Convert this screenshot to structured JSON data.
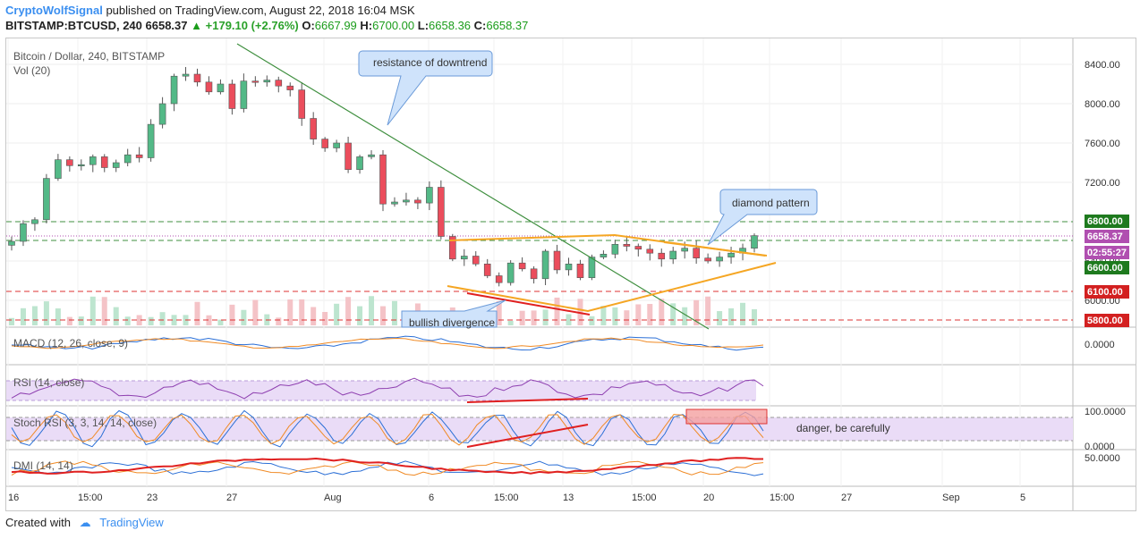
{
  "header": {
    "author": "CryptoWolfSignal",
    "published": "published on TradingView.com, August 22, 2018 16:04 MSK",
    "symbol": "BITSTAMP:BTCUSD, 240",
    "last": "6658.37",
    "change": "+179.10 (+2.76%)",
    "o_label": "O:",
    "o": "6667.99",
    "h_label": "H:",
    "h": "6700.00",
    "l_label": "L:",
    "l": "6658.36",
    "c_label": "C:",
    "c": "6658.37"
  },
  "panes": {
    "main_title": "Bitcoin / Dollar, 240, BITSTAMP",
    "vol_label": "Vol (20)",
    "macd_label": "MACD (12, 26, close, 9)",
    "macd_axis": "0.0000",
    "rsi_label": "RSI (14, close)",
    "stoch_label": "Stoch RSI (3, 3, 14, 14, close)",
    "stoch_axis_top": "100.0000",
    "stoch_axis_bottom": "0.0000",
    "dmi_label": "DMI (14, 14)",
    "dmi_axis": "50.0000"
  },
  "annotations": {
    "resistance": "resistance of downtrend",
    "diamond": "diamond pattern",
    "bullish": "bullish divergence",
    "danger": "danger, be carefully"
  },
  "price_tags": {
    "t6800": "6800.00",
    "t6658": "6658.37",
    "timer": "02:55:27",
    "t6600": "6600.00",
    "t6100": "6100.00",
    "t5800": "5800.00"
  },
  "footer": {
    "created": "Created with",
    "brand": "TradingView"
  },
  "colors": {
    "up": "#53b987",
    "down": "#eb4d5c",
    "trend_green": "#3f8f3f",
    "pattern_orange": "#f5a623",
    "divergence_red": "#e02020",
    "callout_fill": "#cfe3fb"
  },
  "chart_data": {
    "type": "candlestick",
    "y_ticks": [
      8400,
      8000,
      7600,
      7200,
      6800,
      6400,
      6000
    ],
    "x_ticks": [
      "16",
      "15:00",
      "23",
      "27",
      "Aug",
      "6",
      "15:00",
      "13",
      "15:00",
      "20",
      "15:00",
      "27",
      "Sep",
      "5"
    ],
    "horizontal_levels": [
      6800,
      6600,
      6100,
      5800
    ],
    "last_price": 6658.37,
    "close_path": [
      6600,
      6780,
      6820,
      7240,
      7430,
      7370,
      7380,
      7460,
      7350,
      7400,
      7480,
      7450,
      7790,
      8000,
      8280,
      8300,
      8220,
      8120,
      8200,
      7950,
      8230,
      8220,
      8240,
      8180,
      8140,
      7850,
      7640,
      7550,
      7600,
      7330,
      7460,
      7480,
      6980,
      7000,
      7020,
      6990,
      7150,
      6650,
      6420,
      6450,
      6370,
      6250,
      6180,
      6380,
      6320,
      6220,
      6500,
      6310,
      6370,
      6230,
      6440,
      6470,
      6570,
      6550,
      6520,
      6480,
      6420,
      6500,
      6530,
      6430,
      6400,
      6440,
      6480,
      6530,
      6658
    ]
  }
}
